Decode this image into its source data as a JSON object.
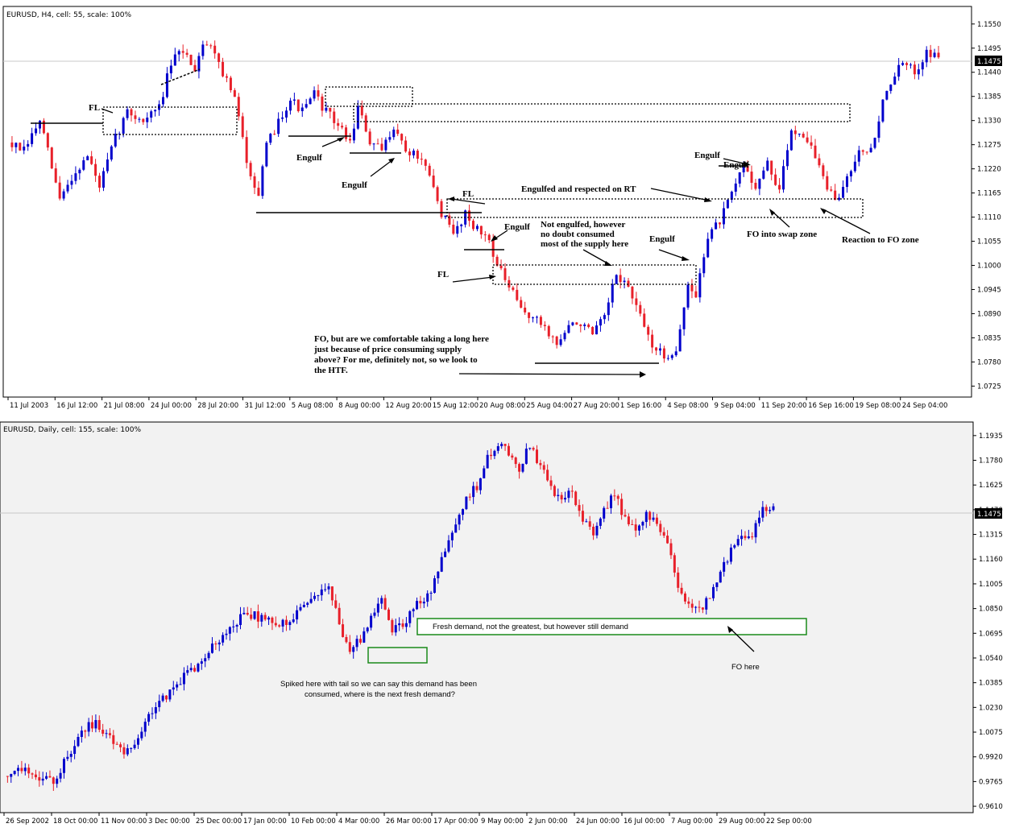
{
  "chart_data": [
    {
      "type": "candlestick",
      "title": "EURUSD, H4, cell: 55, scale: 100%",
      "symbol": "EURUSD",
      "timeframe": "H4",
      "ylim": [
        1.07,
        1.159
      ],
      "yticks": [
        "1.1550",
        "1.1495",
        "1.1440",
        "1.1385",
        "1.1330",
        "1.1275",
        "1.1220",
        "1.1165",
        "1.1110",
        "1.1055",
        "1.1000",
        "1.0945",
        "1.0890",
        "1.0835",
        "1.0780",
        "1.0725"
      ],
      "current_price": "1.1475",
      "xticks": [
        "11 Jul 2003",
        "16 Jul 12:00",
        "21 Jul 08:00",
        "24 Jul 00:00",
        "28 Jul 20:00",
        "31 Jul 12:00",
        "5 Aug 08:00",
        "8 Aug 00:00",
        "12 Aug 20:00",
        "15 Aug 12:00",
        "20 Aug 08:00",
        "25 Aug 04:00",
        "27 Aug 20:00",
        "1 Sep 16:00",
        "4 Sep 08:00",
        "9 Sep 04:00",
        "11 Sep 20:00",
        "16 Sep 16:00",
        "19 Sep 08:00",
        "24 Sep 04:00"
      ],
      "bull_color": "#0000cc",
      "bear_color": "#e8202a",
      "path": [
        [
          0,
          1.128
        ],
        [
          4,
          1.126
        ],
        [
          8,
          1.133
        ],
        [
          13,
          1.115
        ],
        [
          16,
          1.12
        ],
        [
          20,
          1.125
        ],
        [
          23,
          1.118
        ],
        [
          27,
          1.129
        ],
        [
          30,
          1.135
        ],
        [
          34,
          1.133
        ],
        [
          38,
          1.136
        ],
        [
          41,
          1.146
        ],
        [
          44,
          1.149
        ],
        [
          47,
          1.145
        ],
        [
          49,
          1.151
        ],
        [
          52,
          1.149
        ],
        [
          54,
          1.144
        ],
        [
          57,
          1.138
        ],
        [
          60,
          1.124
        ],
        [
          63,
          1.116
        ],
        [
          65,
          1.127
        ],
        [
          68,
          1.133
        ],
        [
          71,
          1.138
        ],
        [
          74,
          1.135
        ],
        [
          77,
          1.139
        ],
        [
          80,
          1.135
        ],
        [
          83,
          1.132
        ],
        [
          86,
          1.128
        ],
        [
          88,
          1.136
        ],
        [
          91,
          1.128
        ],
        [
          94,
          1.126
        ],
        [
          97,
          1.132
        ],
        [
          100,
          1.126
        ],
        [
          103,
          1.125
        ],
        [
          106,
          1.12
        ],
        [
          109,
          1.112
        ],
        [
          112,
          1.107
        ],
        [
          115,
          1.112
        ],
        [
          118,
          1.108
        ],
        [
          121,
          1.106
        ],
        [
          123,
          1.1
        ],
        [
          126,
          1.095
        ],
        [
          129,
          1.09
        ],
        [
          132,
          1.088
        ],
        [
          135,
          1.086
        ],
        [
          138,
          1.082
        ],
        [
          141,
          1.086
        ],
        [
          144,
          1.087
        ],
        [
          147,
          1.084
        ],
        [
          150,
          1.088
        ],
        [
          153,
          1.098
        ],
        [
          156,
          1.095
        ],
        [
          159,
          1.088
        ],
        [
          162,
          1.082
        ],
        [
          165,
          1.079
        ],
        [
          168,
          1.081
        ],
        [
          171,
          1.095
        ],
        [
          173,
          1.093
        ],
        [
          176,
          1.107
        ],
        [
          179,
          1.11
        ],
        [
          182,
          1.116
        ],
        [
          185,
          1.123
        ],
        [
          188,
          1.118
        ],
        [
          191,
          1.123
        ],
        [
          194,
          1.117
        ],
        [
          197,
          1.131
        ],
        [
          200,
          1.13
        ],
        [
          202,
          1.127
        ],
        [
          205,
          1.12
        ],
        [
          208,
          1.114
        ],
        [
          211,
          1.12
        ],
        [
          214,
          1.127
        ],
        [
          217,
          1.126
        ],
        [
          220,
          1.137
        ],
        [
          222,
          1.142
        ],
        [
          225,
          1.146
        ],
        [
          228,
          1.144
        ],
        [
          231,
          1.149
        ],
        [
          234,
          1.147
        ]
      ],
      "annotations": [
        "FL",
        "Engulf",
        "Engulf",
        "Engulf",
        "FL",
        "Engulf",
        "FL",
        "Not engulfed, however",
        "no doubt consumed",
        "most of the supply here",
        "Engulf",
        "Engulfed and respected on RT",
        "Engulf",
        "FO into swap zone",
        "Reaction to FO zone",
        "FO, but are we comfortable taking a long here",
        "just because of price consuming supply",
        "above? For me, definitely not, so we look to",
        "the HTF."
      ]
    },
    {
      "type": "candlestick",
      "title": "EURUSD, Daily, cell: 155, scale: 100%",
      "symbol": "EURUSD",
      "timeframe": "Daily",
      "ylim": [
        0.957,
        1.202
      ],
      "yticks": [
        "1.1935",
        "1.1780",
        "1.1625",
        "1.1470",
        "1.1315",
        "1.1160",
        "1.1005",
        "1.0850",
        "1.0695",
        "1.0540",
        "1.0385",
        "1.0230",
        "1.0075",
        "0.9920",
        "0.9765",
        "0.9610"
      ],
      "current_price": "1.1475",
      "xticks": [
        "26 Sep 2002",
        "18 Oct 00:00",
        "11 Nov 00:00",
        "3 Dec 00:00",
        "25 Dec 00:00",
        "17 Jan 00:00",
        "10 Feb 00:00",
        "4 Mar 00:00",
        "26 Mar 00:00",
        "17 Apr 00:00",
        "9 May 00:00",
        "2 Jun 00:00",
        "24 Jun 00:00",
        "16 Jul 00:00",
        "7 Aug 00:00",
        "29 Aug 00:00",
        "22 Sep 00:00"
      ],
      "bull_color": "#0000cc",
      "bear_color": "#e8202a",
      "path": [
        [
          0,
          0.98
        ],
        [
          6,
          0.986
        ],
        [
          10,
          0.979
        ],
        [
          14,
          0.976
        ],
        [
          18,
          0.992
        ],
        [
          22,
          1.009
        ],
        [
          26,
          1.014
        ],
        [
          30,
          1.005
        ],
        [
          33,
          0.995
        ],
        [
          37,
          1.001
        ],
        [
          41,
          1.018
        ],
        [
          45,
          1.028
        ],
        [
          49,
          1.038
        ],
        [
          53,
          1.046
        ],
        [
          57,
          1.055
        ],
        [
          61,
          1.066
        ],
        [
          65,
          1.076
        ],
        [
          69,
          1.082
        ],
        [
          73,
          1.079
        ],
        [
          77,
          1.076
        ],
        [
          81,
          1.077
        ],
        [
          85,
          1.085
        ],
        [
          89,
          1.096
        ],
        [
          92,
          1.1
        ],
        [
          95,
          1.074
        ],
        [
          98,
          1.06
        ],
        [
          101,
          1.065
        ],
        [
          104,
          1.08
        ],
        [
          107,
          1.09
        ],
        [
          110,
          1.072
        ],
        [
          113,
          1.075
        ],
        [
          116,
          1.086
        ],
        [
          120,
          1.092
        ],
        [
          124,
          1.115
        ],
        [
          128,
          1.135
        ],
        [
          131,
          1.153
        ],
        [
          134,
          1.162
        ],
        [
          137,
          1.18
        ],
        [
          140,
          1.189
        ],
        [
          143,
          1.182
        ],
        [
          146,
          1.172
        ],
        [
          149,
          1.188
        ],
        [
          152,
          1.174
        ],
        [
          155,
          1.16
        ],
        [
          158,
          1.155
        ],
        [
          161,
          1.158
        ],
        [
          164,
          1.142
        ],
        [
          167,
          1.132
        ],
        [
          170,
          1.147
        ],
        [
          173,
          1.158
        ],
        [
          176,
          1.141
        ],
        [
          179,
          1.132
        ],
        [
          182,
          1.146
        ],
        [
          185,
          1.138
        ],
        [
          188,
          1.125
        ],
        [
          191,
          1.101
        ],
        [
          194,
          1.086
        ],
        [
          197,
          1.084
        ],
        [
          200,
          1.092
        ],
        [
          203,
          1.106
        ],
        [
          206,
          1.122
        ],
        [
          209,
          1.13
        ],
        [
          212,
          1.132
        ],
        [
          215,
          1.147
        ],
        [
          218,
          1.148
        ]
      ],
      "annotations": [
        "Fresh demand, not the greatest, but however still demand",
        "Spiked here with tail so we can say this demand has been",
        "consumed, where is the next fresh demand?",
        "FO here"
      ]
    }
  ]
}
